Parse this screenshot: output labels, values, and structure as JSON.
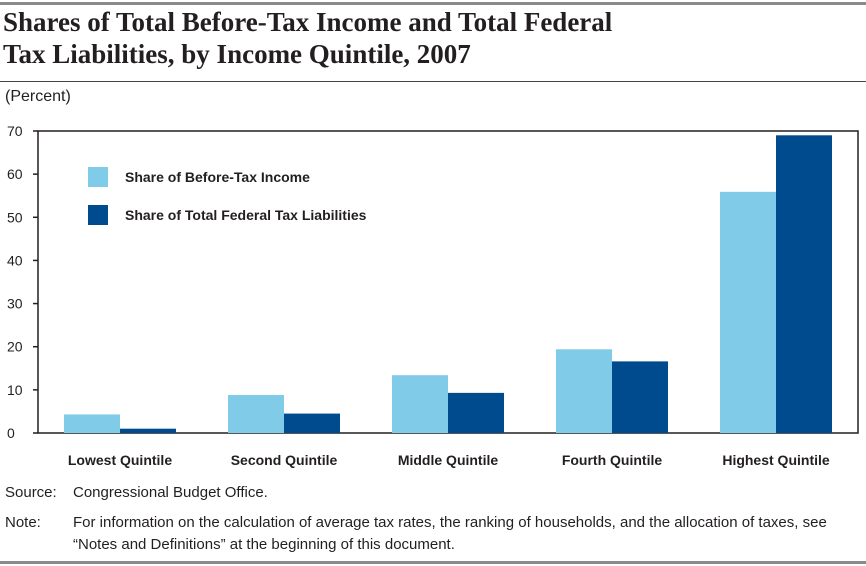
{
  "page": {
    "title_line1": "Shares of Total Before-Tax Income and Total Federal",
    "title_line2": "Tax Liabilities, by Income Quintile, 2007",
    "unit": "(Percent)",
    "source_label": "Source:",
    "source_text": "Congressional Budget Office.",
    "note_label": "Note:",
    "note_text": "For information on the calculation of average tax rates, the ranking of households, and the allocation of taxes, see “Notes and Definitions” at the beginning of this document."
  },
  "chart_data": {
    "type": "bar",
    "categories": [
      "Lowest Quintile",
      "Second Quintile",
      "Middle Quintile",
      "Fourth Quintile",
      "Highest Quintile"
    ],
    "series": [
      {
        "name": "Share of Before-Tax Income",
        "color": "#7fcbe8",
        "values": [
          4.3,
          8.8,
          13.4,
          19.4,
          55.9
        ]
      },
      {
        "name": "Share of Total Federal Tax Liabilities",
        "color": "#004b8d",
        "values": [
          1.0,
          4.5,
          9.3,
          16.6,
          69.0
        ]
      }
    ],
    "ylim": [
      0,
      70
    ],
    "yticks": [
      0,
      10,
      20,
      30,
      40,
      50,
      60,
      70
    ],
    "grid": false,
    "legend_position": "top-left"
  }
}
